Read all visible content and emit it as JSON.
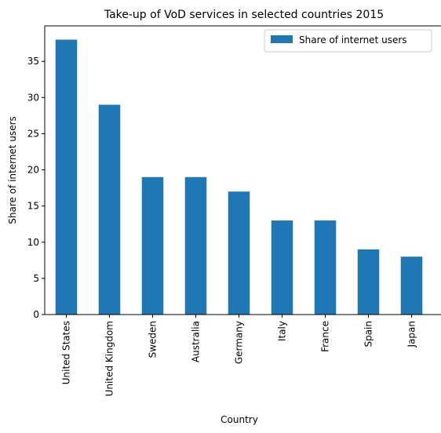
{
  "chart_data": {
    "type": "bar",
    "title": "Take-up of VoD services in selected countries 2015",
    "xlabel": "Country",
    "ylabel": "Share of internet users",
    "categories": [
      "United States",
      "United Kingdom",
      "Sweden",
      "Australia",
      "Germany",
      "Italy",
      "France",
      "Spain",
      "Japan"
    ],
    "series": [
      {
        "name": "Share of internet users",
        "values": [
          38,
          29,
          19,
          19,
          17,
          13,
          13,
          9,
          8
        ],
        "color": "#1f77b4"
      }
    ],
    "ylim": [
      0,
      39.9
    ],
    "yticks": [
      0,
      5,
      10,
      15,
      20,
      25,
      30,
      35
    ],
    "grid": false,
    "legend_position": "top-right"
  }
}
